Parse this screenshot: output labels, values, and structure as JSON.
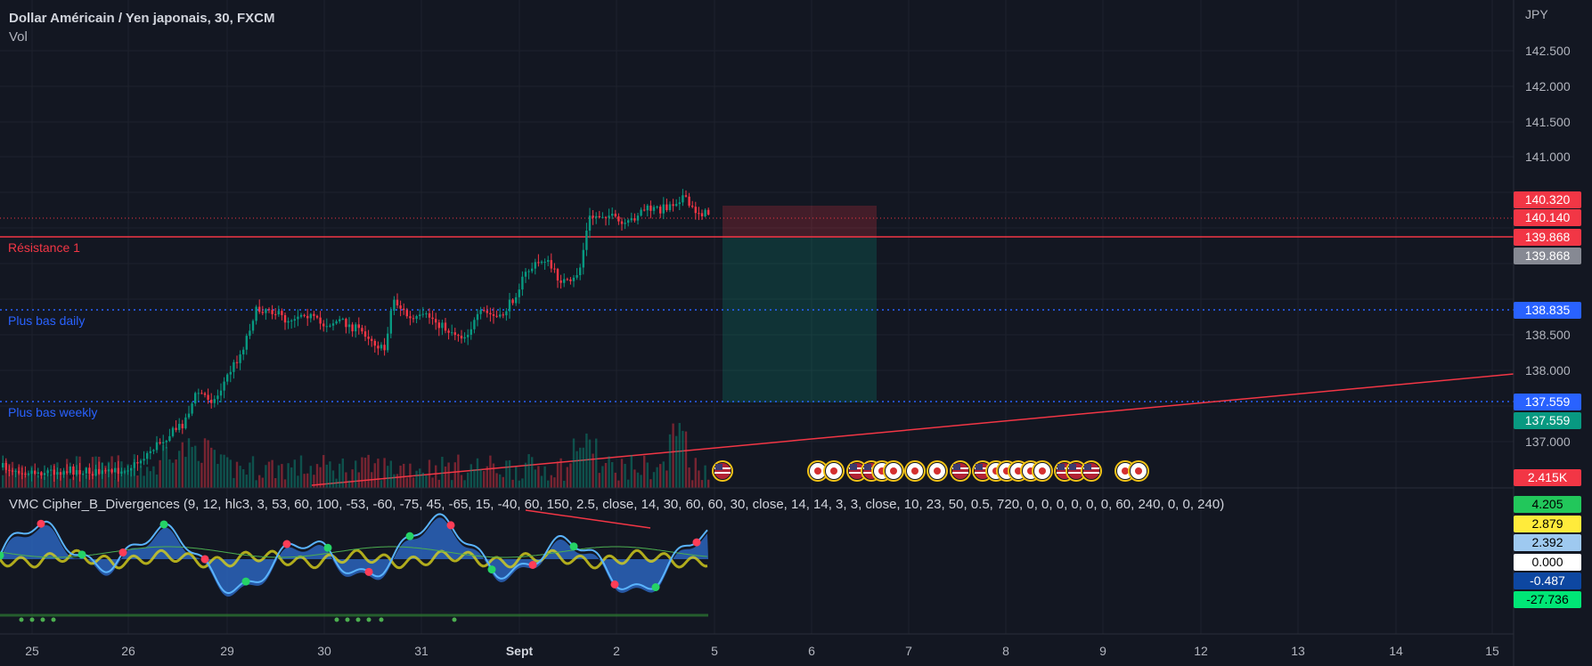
{
  "header": {
    "title": "Dollar Américain / Yen japonais, 30, FXCM",
    "volume_label": "Vol"
  },
  "oscillator": {
    "title": "VMC Cipher_B_Divergences (9, 12, hlc3, 3, 53, 60, 100, -53, -60, -75, 45, -65, 15, -40, 60, 150, 2.5, close, 14, 30, 60, 60, 30, close, 14, 14, 3, 3, close, 10, 23, 50, 0.5, 720, 0, 0, 0, 0, 0, 0, 60, 240, 0, 0, 240)"
  },
  "drawings": {
    "resistance_label": "Résistance 1",
    "daily_low_label": "Plus bas daily",
    "weekly_low_label": "Plus bas weekly"
  },
  "price_axis": {
    "currency": "JPY",
    "ticks": [
      "142.500",
      "142.000",
      "141.500",
      "141.000",
      "138.500",
      "138.000",
      "137.000"
    ]
  },
  "price_badges": [
    {
      "value": "140.320",
      "bg": "#f23645",
      "fg": "#ffffff"
    },
    {
      "value": "140.140",
      "bg": "#f23645",
      "fg": "#ffffff"
    },
    {
      "value": "139.868",
      "bg": "#f23645",
      "fg": "#ffffff"
    },
    {
      "value": "139.868",
      "bg": "#868993",
      "fg": "#ffffff"
    },
    {
      "value": "138.835",
      "bg": "#2962ff",
      "fg": "#ffffff"
    },
    {
      "value": "137.559",
      "bg": "#2962ff",
      "fg": "#ffffff"
    },
    {
      "value": "137.559",
      "bg": "#089981",
      "fg": "#ffffff"
    },
    {
      "value": "2.415K",
      "bg": "#f23645",
      "fg": "#ffffff"
    },
    {
      "value": "4.205",
      "bg": "#22c75b",
      "fg": "#000000"
    },
    {
      "value": "2.879",
      "bg": "#ffeb3b",
      "fg": "#000000"
    },
    {
      "value": "2.392",
      "bg": "#9ec9f0",
      "fg": "#000000"
    },
    {
      "value": "0.000",
      "bg": "#ffffff",
      "fg": "#000000"
    },
    {
      "value": "-0.487",
      "bg": "#0d47a1",
      "fg": "#ffffff"
    },
    {
      "value": "-27.736",
      "bg": "#00e676",
      "fg": "#000000"
    }
  ],
  "time_axis": {
    "labels": [
      "25",
      "26",
      "29",
      "30",
      "31",
      "Sept",
      "2",
      "5",
      "6",
      "7",
      "8",
      "9",
      "12",
      "13",
      "14",
      "15"
    ]
  },
  "colors": {
    "background": "#131722",
    "grid": "#1e222d",
    "bull_candle": "#089981",
    "bear_candle": "#f23645",
    "resistance": "#f23645",
    "support_dotted": "#2962ff",
    "wave_blue": "#2f6fd1",
    "wave_line": "#5ab4ff",
    "yellow": "#d9d21c"
  },
  "icons": [
    "us-flag-icon",
    "japan-flag-icon"
  ]
}
